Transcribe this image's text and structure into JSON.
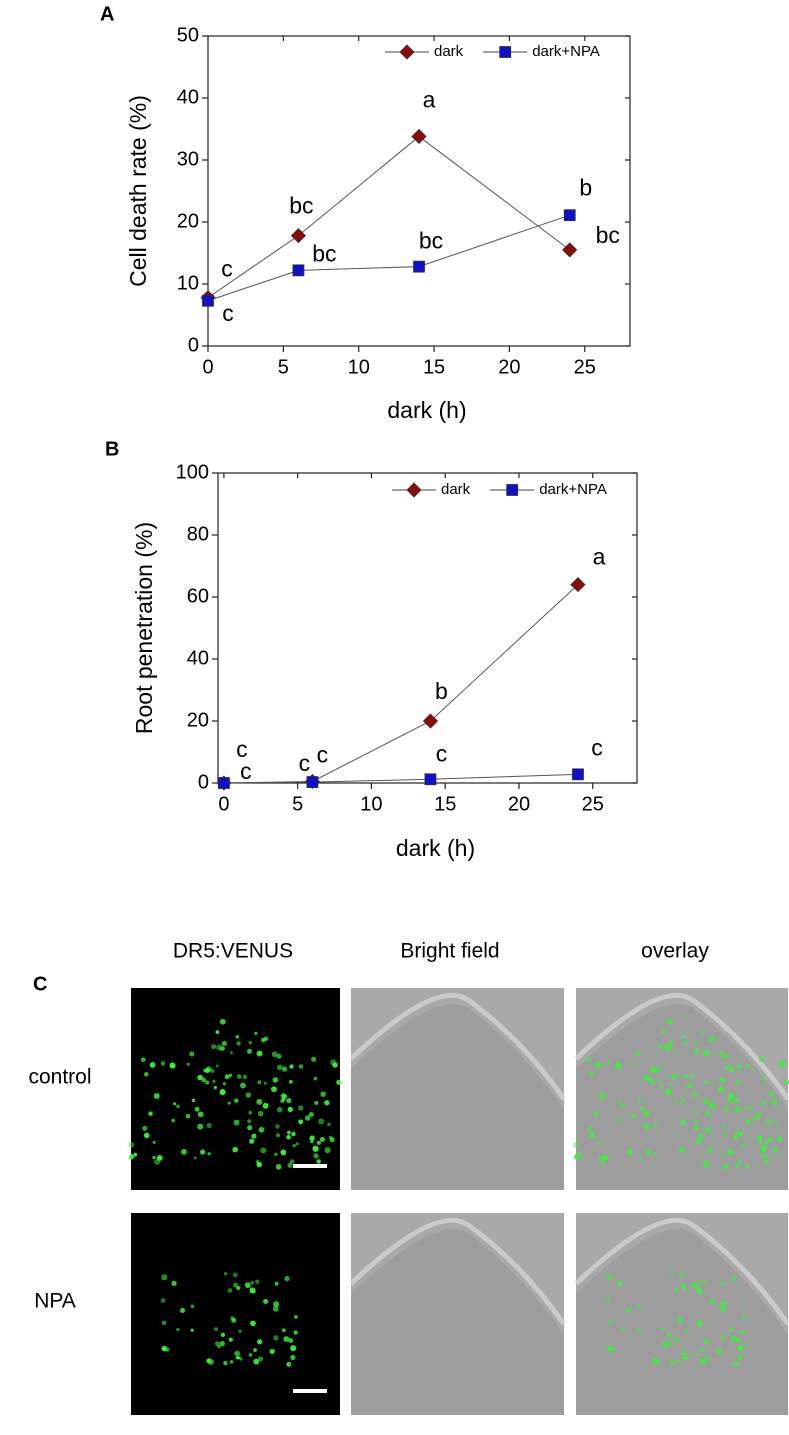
{
  "chart_data": [
    {
      "type": "line",
      "panel_label": "A",
      "x_label": "dark (h)",
      "y_label": "Cell death rate (%)",
      "x": [
        0,
        6,
        14,
        24
      ],
      "series": [
        {
          "name": "dark",
          "color": "#8b0a0a",
          "marker": "diamond",
          "values": [
            7.8,
            17.8,
            33.8,
            15.5
          ],
          "letters": [
            "c",
            "bc",
            "a",
            "bc"
          ]
        },
        {
          "name": "dark+NPA",
          "color": "#1010c8",
          "marker": "square",
          "values": [
            7.3,
            12.2,
            12.8,
            21.1
          ],
          "letters": [
            "c",
            "bc",
            "bc",
            "b"
          ]
        }
      ],
      "xlim": [
        0,
        28
      ],
      "xticks": [
        0,
        5,
        10,
        15,
        20,
        25
      ],
      "ylim": [
        0,
        50
      ],
      "yticks": [
        0,
        10,
        20,
        30,
        40,
        50
      ],
      "legend": "upper right"
    },
    {
      "type": "line",
      "panel_label": "B",
      "x_label": "dark (h)",
      "y_label": "Root penetration  (%)",
      "x": [
        0,
        6,
        14,
        24
      ],
      "series": [
        {
          "name": "dark",
          "color": "#8b0a0a",
          "marker": "diamond",
          "values": [
            0,
            0.5,
            20,
            64
          ],
          "letters": [
            "c",
            "c",
            "b",
            "a"
          ]
        },
        {
          "name": "dark+NPA",
          "color": "#1010c8",
          "marker": "square",
          "values": [
            0,
            0.3,
            1.2,
            2.8
          ],
          "letters": [
            "c",
            "c",
            "c",
            "c"
          ]
        }
      ],
      "xlim": [
        -0.4,
        28
      ],
      "xticks": [
        0,
        5,
        10,
        15,
        20,
        25
      ],
      "ylim": [
        0,
        100
      ],
      "yticks": [
        0,
        20,
        40,
        60,
        80,
        100
      ],
      "legend": "upper right"
    }
  ],
  "panel_c": {
    "label": "C",
    "columns": [
      "DR5:VENUS",
      "Bright field",
      "overlay"
    ],
    "rows": [
      "control",
      "NPA"
    ]
  }
}
